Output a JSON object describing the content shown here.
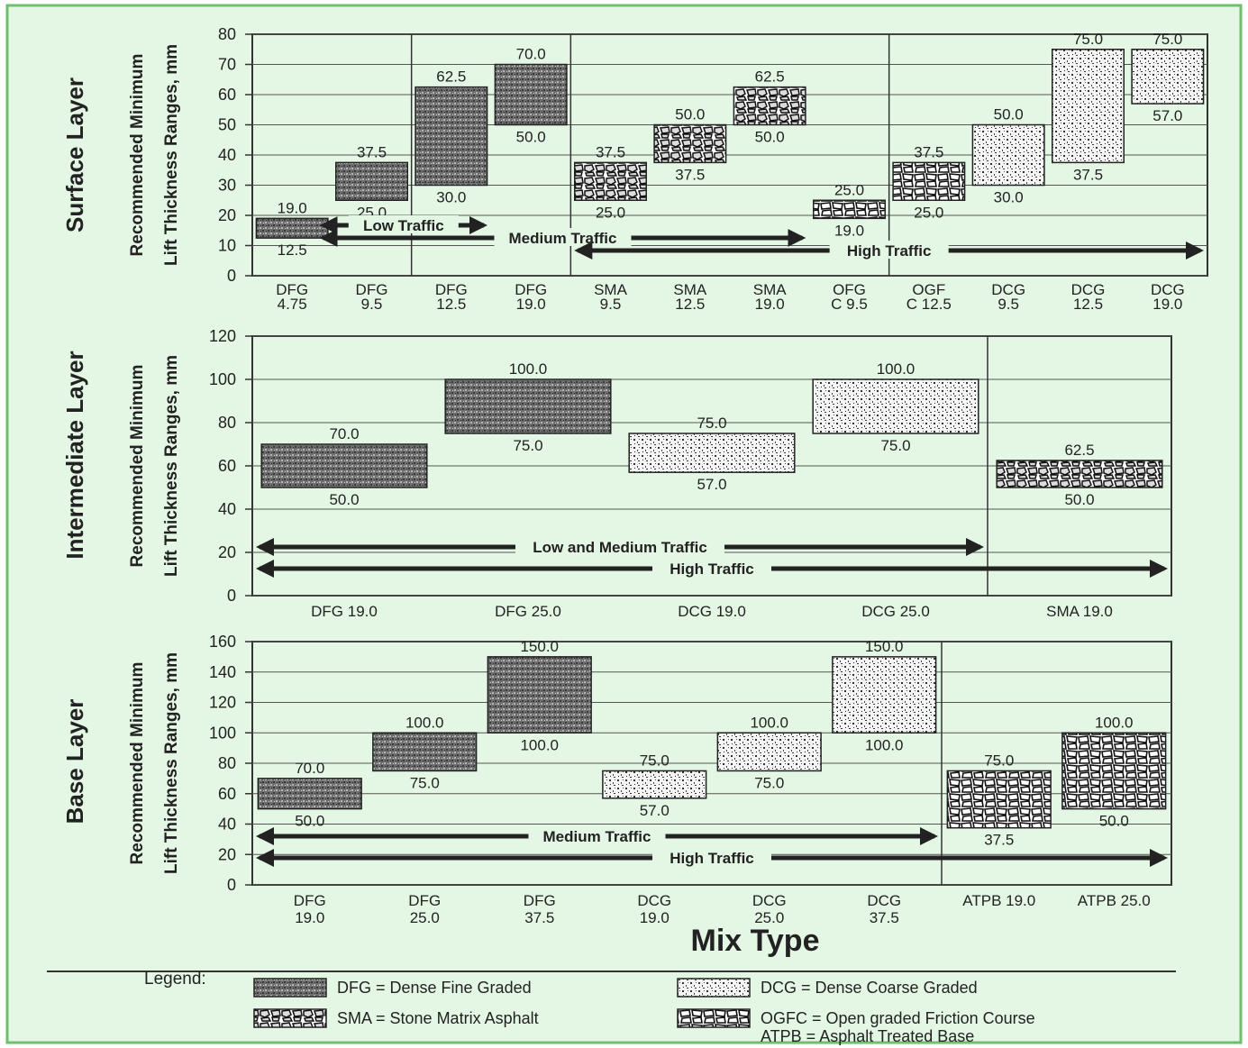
{
  "background_color": "#e4f6e4",
  "border_color": "#6fbf6f",
  "panel_ylabel": [
    "Recommended Minimum",
    "Lift Thickness Ranges, mm"
  ],
  "xlabel": "Mix Type",
  "chart_data": [
    {
      "type": "bar",
      "section": "Surface Layer",
      "ylim": [
        0,
        80
      ],
      "yticks": [
        0,
        10,
        20,
        30,
        40,
        50,
        60,
        70,
        80
      ],
      "grid": true,
      "categories": [
        [
          "DFG",
          "4.75"
        ],
        [
          "DFG",
          "9.5"
        ],
        [
          "DFG",
          "12.5"
        ],
        [
          "DFG",
          "19.0"
        ],
        [
          "SMA",
          "9.5"
        ],
        [
          "SMA",
          "12.5"
        ],
        [
          "SMA",
          "19.0"
        ],
        [
          "OFG",
          "C   9.5"
        ],
        [
          "OGF",
          "C  12.5"
        ],
        [
          "DCG",
          "9.5"
        ],
        [
          "DCG",
          "12.5"
        ],
        [
          "DCG",
          "19.0"
        ]
      ],
      "ranges": [
        {
          "mix": "DFG",
          "min": 12.5,
          "max": 19.0,
          "min_label": "12.5",
          "max_label": "19.0"
        },
        {
          "mix": "DFG",
          "min": 25.0,
          "max": 37.5,
          "min_label": "25.0",
          "max_label": "37.5"
        },
        {
          "mix": "DFG",
          "min": 30.0,
          "max": 62.5,
          "min_label": "30.0",
          "max_label": "62.5"
        },
        {
          "mix": "DFG",
          "min": 50.0,
          "max": 70.0,
          "min_label": "50.0",
          "max_label": "70.0"
        },
        {
          "mix": "SMA",
          "min": 25.0,
          "max": 37.5,
          "min_label": "25.0",
          "max_label": "37.5"
        },
        {
          "mix": "SMA",
          "min": 37.5,
          "max": 50.0,
          "min_label": "37.5",
          "max_label": "50.0"
        },
        {
          "mix": "SMA",
          "min": 50.0,
          "max": 62.5,
          "min_label": "50.0",
          "max_label": "62.5"
        },
        {
          "mix": "OGFC",
          "min": 19.0,
          "max": 25.0,
          "min_label": "19.0",
          "max_label": "25.0"
        },
        {
          "mix": "OGFC",
          "min": 25.0,
          "max": 37.5,
          "min_label": "25.0",
          "max_label": "37.5"
        },
        {
          "mix": "DCG",
          "min": 30.0,
          "max": 50.0,
          "min_label": "30.0",
          "max_label": "50.0"
        },
        {
          "mix": "DCG",
          "min": 37.5,
          "max": 75.0,
          "min_label": "37.5",
          "max_label": "75.0"
        },
        {
          "mix": "DCG",
          "min": 57.0,
          "max": 75.0,
          "min_label": "57.0",
          "max_label": "75.0"
        }
      ],
      "traffic": [
        {
          "label": "Low Traffic",
          "from": 0.8,
          "to": 3
        },
        {
          "label": "Medium Traffic",
          "from": 0.8,
          "to": 7
        },
        {
          "label": "High Traffic",
          "from": 4,
          "to": 12
        }
      ]
    },
    {
      "type": "bar",
      "section": "Intermediate Layer",
      "ylim": [
        0,
        120
      ],
      "yticks": [
        0,
        20,
        40,
        60,
        80,
        100,
        120
      ],
      "grid": true,
      "categories": [
        [
          "DFG",
          "19.0"
        ],
        [
          "DFG",
          "25.0"
        ],
        [
          "DCG",
          "19.0"
        ],
        [
          "DCG",
          "25.0"
        ],
        [
          "SMA",
          "19.0"
        ]
      ],
      "ranges": [
        {
          "mix": "DFG",
          "min": 50.0,
          "max": 70.0,
          "min_label": "50.0",
          "max_label": "70.0"
        },
        {
          "mix": "DFG",
          "min": 75.0,
          "max": 100.0,
          "min_label": "75.0",
          "max_label": "100.0"
        },
        {
          "mix": "DCG",
          "min": 57.0,
          "max": 75.0,
          "min_label": "57.0",
          "max_label": "75.0"
        },
        {
          "mix": "DCG",
          "min": 75.0,
          "max": 100.0,
          "min_label": "75.0",
          "max_label": "100.0"
        },
        {
          "mix": "SMA",
          "min": 50.0,
          "max": 62.5,
          "min_label": "50.0",
          "max_label": "62.5"
        }
      ],
      "traffic": [
        {
          "label": "Low and Medium Traffic",
          "from": 0,
          "to": 4
        },
        {
          "label": "High Traffic",
          "from": 0,
          "to": 5
        }
      ]
    },
    {
      "type": "bar",
      "section": "Base Layer",
      "ylim": [
        0,
        160
      ],
      "yticks": [
        0,
        20,
        40,
        60,
        80,
        100,
        120,
        140,
        160
      ],
      "grid": true,
      "categories": [
        [
          "DFG",
          "19.0"
        ],
        [
          "DFG",
          "25.0"
        ],
        [
          "DFG",
          "37.5"
        ],
        [
          "DCG",
          "19.0"
        ],
        [
          "DCG",
          "25.0"
        ],
        [
          "DCG",
          "37.5"
        ],
        [
          "ATPB 19.0",
          ""
        ],
        [
          "ATPB 25.0",
          ""
        ]
      ],
      "ranges": [
        {
          "mix": "DFG",
          "min": 50.0,
          "max": 70.0,
          "min_label": "50.0",
          "max_label": "70.0"
        },
        {
          "mix": "DFG",
          "min": 75.0,
          "max": 100.0,
          "min_label": "75.0",
          "max_label": "100.0"
        },
        {
          "mix": "DFG",
          "min": 100.0,
          "max": 150.0,
          "min_label": "100.0",
          "max_label": "150.0"
        },
        {
          "mix": "DCG",
          "min": 57.0,
          "max": 75.0,
          "min_label": "57.0",
          "max_label": "75.0"
        },
        {
          "mix": "DCG",
          "min": 75.0,
          "max": 100.0,
          "min_label": "75.0",
          "max_label": "100.0"
        },
        {
          "mix": "DCG",
          "min": 100.0,
          "max": 150.0,
          "min_label": "100.0",
          "max_label": "150.0"
        },
        {
          "mix": "OGFC",
          "min": 37.5,
          "max": 75.0,
          "min_label": "37.5",
          "max_label": "75.0"
        },
        {
          "mix": "OGFC",
          "min": 50.0,
          "max": 100.0,
          "min_label": "50.0",
          "max_label": "100.0"
        }
      ],
      "traffic": [
        {
          "label": "Medium Traffic",
          "from": 0,
          "to": 6
        },
        {
          "label": "High Traffic",
          "from": 0,
          "to": 8
        }
      ]
    }
  ],
  "legend": {
    "title": "Legend:",
    "items": [
      {
        "mix": "DFG",
        "text": "DFG = Dense Fine Graded"
      },
      {
        "mix": "DCG",
        "text": "DCG = Dense Coarse Graded"
      },
      {
        "mix": "SMA",
        "text": "SMA = Stone Matrix Asphalt"
      },
      {
        "mix": "OGFC",
        "text": "OGFC = Open graded Friction Course"
      }
    ],
    "extra": "ATPB = Asphalt Treated Base"
  }
}
